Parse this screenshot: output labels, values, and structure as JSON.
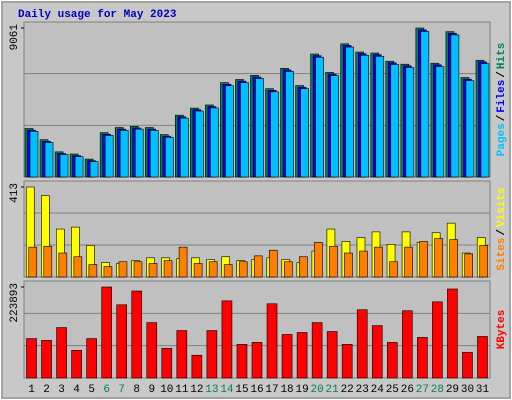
{
  "chart_data": [
    {
      "type": "bar",
      "title": "Daily usage for May 2023",
      "title_color": "#0000c0",
      "ylim": [
        0,
        9061
      ],
      "yticks": [
        9061
      ],
      "separator": "/",
      "series": [
        {
          "name": "Hits",
          "color": "#00805c",
          "values": [
            2950,
            2270,
            1530,
            1400,
            1090,
            2700,
            3010,
            3080,
            3010,
            2580,
            3760,
            4190,
            4380,
            5740,
            5930,
            6180,
            5370,
            6610,
            5560,
            7480,
            6360,
            8100,
            7600,
            7540,
            7040,
            6860,
            9061,
            6920,
            8840,
            6050,
            7100
          ]
        },
        {
          "name": "Files",
          "color": "#0000ff",
          "values": [
            2850,
            2170,
            1430,
            1300,
            990,
            2600,
            2910,
            2980,
            2910,
            2480,
            3660,
            4090,
            4280,
            5640,
            5830,
            6080,
            5270,
            6510,
            5460,
            7380,
            6260,
            8000,
            7500,
            7440,
            6940,
            6760,
            8950,
            6820,
            8740,
            5950,
            7000
          ]
        },
        {
          "name": "Pages",
          "color": "#00c0ff",
          "values": [
            2780,
            2100,
            1370,
            1240,
            940,
            2530,
            2840,
            2910,
            2840,
            2410,
            3580,
            4010,
            4200,
            5550,
            5740,
            5990,
            5180,
            6420,
            5370,
            7280,
            6160,
            7900,
            7400,
            7340,
            6840,
            6660,
            8850,
            6720,
            8640,
            5860,
            6900
          ]
        }
      ]
    },
    {
      "type": "bar",
      "ylim": [
        0,
        413
      ],
      "yticks": [
        413
      ],
      "separator": "/",
      "series": [
        {
          "name": "Visits",
          "color": "#ffff00",
          "values": [
            413,
            373,
            220,
            229,
            145,
            66,
            62,
            75,
            88,
            88,
            84,
            88,
            80,
            93,
            75,
            80,
            88,
            80,
            66,
            119,
            220,
            163,
            181,
            207,
            150,
            207,
            159,
            203,
            247,
            110,
            181
          ]
        },
        {
          "name": "Sites",
          "color": "#ff8000",
          "values": [
            137,
            141,
            110,
            93,
            57,
            48,
            70,
            70,
            62,
            75,
            137,
            62,
            70,
            57,
            70,
            97,
            123,
            70,
            93,
            159,
            141,
            110,
            119,
            137,
            70,
            137,
            163,
            176,
            172,
            106,
            145
          ]
        }
      ]
    },
    {
      "type": "bar",
      "ylim": [
        0,
        223893
      ],
      "yticks": [
        223893
      ],
      "series": [
        {
          "name": "KBytes",
          "color": "#ff0000",
          "values": [
            97000,
            92500,
            124100,
            68100,
            97000,
            223893,
            180100,
            214000,
            136300,
            73000,
            116800,
            56000,
            116800,
            189800,
            82800,
            87600,
            182600,
            107100,
            112000,
            136300,
            114400,
            82800,
            168000,
            129000,
            87600,
            165500,
            99800,
            187400,
            219000,
            63300,
            102200
          ]
        }
      ],
      "categories": [
        "1",
        "2",
        "3",
        "4",
        "5",
        "6",
        "7",
        "8",
        "9",
        "10",
        "11",
        "12",
        "13",
        "14",
        "15",
        "16",
        "17",
        "18",
        "19",
        "20",
        "21",
        "22",
        "23",
        "24",
        "25",
        "26",
        "27",
        "28",
        "29",
        "30",
        "31"
      ],
      "category_colors": [
        "#000000",
        "#000000",
        "#000000",
        "#000000",
        "#000000",
        "#00805c",
        "#00805c",
        "#000000",
        "#000000",
        "#000000",
        "#000000",
        "#000000",
        "#00805c",
        "#00805c",
        "#000000",
        "#000000",
        "#000000",
        "#000000",
        "#000000",
        "#00805c",
        "#00805c",
        "#000000",
        "#000000",
        "#000000",
        "#000000",
        "#000000",
        "#00805c",
        "#00805c",
        "#000000",
        "#000000",
        "#000000"
      ]
    }
  ]
}
